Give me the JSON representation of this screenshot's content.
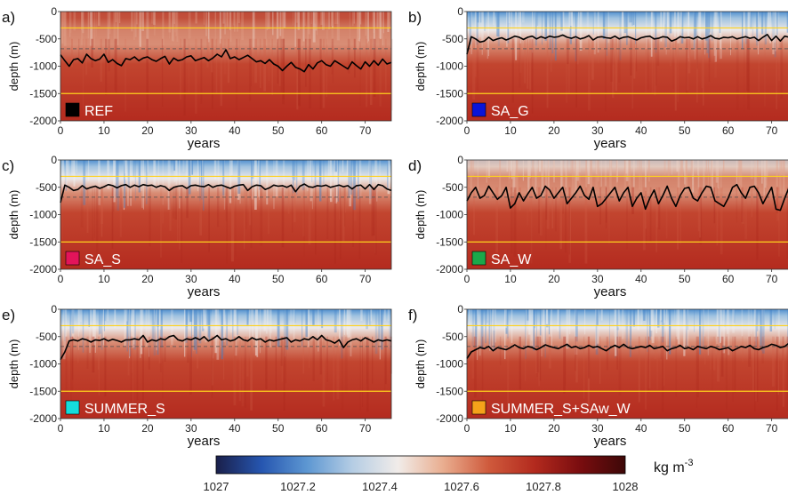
{
  "chart_data": {
    "type": "heatmap",
    "panels": [
      {
        "letter": "a)",
        "name": "REF",
        "legend_color": "#000000",
        "surface_fresh": 0.0,
        "thermocline_depth": [
          -1000,
          -800
        ],
        "mixed_layer_depth": [
          -790,
          -900,
          -1000,
          -880,
          -860,
          -940,
          -780,
          -860,
          -900,
          -870,
          -780,
          -930,
          -880,
          -950,
          -990,
          -860,
          -880,
          -830,
          -900,
          -850,
          -830,
          -880,
          -910,
          -860,
          -820,
          -960,
          -850,
          -900,
          -880,
          -830,
          -810,
          -900,
          -870,
          -840,
          -900,
          -850,
          -780,
          -830,
          -700,
          -860,
          -830,
          -880,
          -840,
          -800,
          -860,
          -920,
          -900,
          -950,
          -880,
          -960,
          -1000,
          -1080,
          -1000,
          -930,
          -1020,
          -1050,
          -1100,
          -970,
          -1050,
          -940,
          -900,
          -970,
          -1000,
          -900,
          -950,
          -1000,
          -1050,
          -920,
          -990,
          -1050,
          -920,
          -1000,
          -900,
          -980,
          -870,
          -960,
          -930
        ]
      },
      {
        "letter": "b)",
        "name": "SA_G",
        "legend_color": "#0a14d8",
        "surface_fresh": 1.0,
        "thermocline_depth": [
          -560,
          -420
        ],
        "mixed_layer_depth": [
          -780,
          -460,
          -500,
          -560,
          -540,
          -470,
          -530,
          -500,
          -480,
          -520,
          -490,
          -450,
          -470,
          -510,
          -470,
          -450,
          -500,
          -460,
          -490,
          -450,
          -470,
          -460,
          -430,
          -470,
          -490,
          -460,
          -500,
          -480,
          -440,
          -520,
          -470,
          -460,
          -480,
          -490,
          -450,
          -500,
          -470,
          -460,
          -490,
          -520,
          -480,
          -460,
          -450,
          -500,
          -490,
          -460,
          -470,
          -540,
          -510,
          -460,
          -480,
          -470,
          -500,
          -460,
          -500,
          -480,
          -440,
          -490,
          -500,
          -470,
          -480,
          -460,
          -500,
          -480,
          -460,
          -490,
          -470,
          -530,
          -470,
          -420,
          -530,
          -450,
          -540,
          -450,
          -470,
          -430,
          -450
        ]
      },
      {
        "letter": "c)",
        "name": "SA_S",
        "legend_color": "#e3145a",
        "surface_fresh": 0.85,
        "thermocline_depth": [
          -600,
          -420
        ],
        "mixed_layer_depth": [
          -780,
          -460,
          -500,
          -560,
          -540,
          -470,
          -530,
          -500,
          -480,
          -520,
          -490,
          -450,
          -470,
          -510,
          -470,
          -450,
          -500,
          -460,
          -490,
          -450,
          -470,
          -460,
          -500,
          -470,
          -490,
          -560,
          -500,
          -480,
          -470,
          -520,
          -470,
          -460,
          -480,
          -490,
          -450,
          -500,
          -470,
          -460,
          -490,
          -520,
          -480,
          -460,
          -450,
          -560,
          -490,
          -460,
          -470,
          -540,
          -510,
          -460,
          -480,
          -470,
          -500,
          -460,
          -580,
          -480,
          -440,
          -490,
          -500,
          -470,
          -480,
          -460,
          -500,
          -480,
          -460,
          -490,
          -470,
          -530,
          -470,
          -460,
          -530,
          -450,
          -540,
          -450,
          -470,
          -530,
          -560
        ]
      },
      {
        "letter": "d)",
        "name": "SA_W",
        "legend_color": "#1aa84a",
        "surface_fresh": 0.45,
        "thermocline_depth": [
          -950,
          -450
        ],
        "mixed_layer_depth": [
          -750,
          -600,
          -500,
          -700,
          -650,
          -480,
          -600,
          -720,
          -650,
          -500,
          -880,
          -800,
          -600,
          -750,
          -620,
          -500,
          -700,
          -650,
          -480,
          -550,
          -700,
          -600,
          -500,
          -800,
          -700,
          -600,
          -480,
          -650,
          -720,
          -500,
          -850,
          -800,
          -700,
          -600,
          -500,
          -750,
          -600,
          -500,
          -850,
          -700,
          -600,
          -900,
          -700,
          -550,
          -800,
          -650,
          -480,
          -700,
          -850,
          -650,
          -520,
          -500,
          -700,
          -750,
          -600,
          -480,
          -500,
          -750,
          -800,
          -850,
          -700,
          -500,
          -450,
          -600,
          -700,
          -500,
          -480,
          -600,
          -800,
          -650,
          -500,
          -900,
          -920,
          -700,
          -500,
          -480,
          -500
        ]
      },
      {
        "letter": "e)",
        "name": "SUMMER_S",
        "legend_color": "#15dcdc",
        "surface_fresh": 1.0,
        "thermocline_depth": [
          -680,
          -480
        ],
        "mixed_layer_depth": [
          -920,
          -780,
          -580,
          -560,
          -580,
          -540,
          -560,
          -600,
          -560,
          -570,
          -540,
          -580,
          -550,
          -570,
          -600,
          -560,
          -560,
          -540,
          -560,
          -480,
          -600,
          -560,
          -580,
          -540,
          -560,
          -500,
          -480,
          -560,
          -580,
          -540,
          -560,
          -520,
          -560,
          -500,
          -580,
          -540,
          -480,
          -560,
          -540,
          -580,
          -560,
          -500,
          -560,
          -580,
          -520,
          -560,
          -540,
          -600,
          -560,
          -580,
          -560,
          -540,
          -520,
          -600,
          -560,
          -580,
          -540,
          -560,
          -500,
          -560,
          -480,
          -560,
          -580,
          -620,
          -560,
          -700,
          -600,
          -560,
          -540,
          -580,
          -520,
          -560,
          -600,
          -560,
          -580,
          -560,
          -580
        ]
      },
      {
        "letter": "f)",
        "name": "SUMMER_S+SAw_W",
        "legend_color": "#f5a21a",
        "surface_fresh": 0.9,
        "thermocline_depth": [
          -800,
          -580
        ],
        "mixed_layer_depth": [
          -900,
          -780,
          -740,
          -700,
          -720,
          -680,
          -760,
          -700,
          -720,
          -740,
          -700,
          -650,
          -700,
          -720,
          -680,
          -700,
          -740,
          -700,
          -650,
          -680,
          -700,
          -720,
          -680,
          -640,
          -700,
          -680,
          -720,
          -700,
          -660,
          -700,
          -680,
          -720,
          -760,
          -700,
          -660,
          -700,
          -640,
          -700,
          -720,
          -700,
          -680,
          -700,
          -660,
          -720,
          -700,
          -680,
          -760,
          -720,
          -700,
          -660,
          -720,
          -700,
          -740,
          -680,
          -700,
          -720,
          -680,
          -700,
          -740,
          -720,
          -700,
          -760,
          -720,
          -680,
          -700,
          -660,
          -720,
          -740,
          -700,
          -680,
          -640,
          -660,
          -700,
          -680,
          -620,
          -660,
          -680
        ]
      }
    ],
    "x_range": [
      0,
      76
    ],
    "x_ticks": [
      "0",
      "10",
      "20",
      "30",
      "40",
      "50",
      "60",
      "70"
    ],
    "y_range": [
      -2000,
      0
    ],
    "y_ticks": [
      "0",
      "-500",
      "-1000",
      "-1500",
      "-2000"
    ],
    "xlabel": "years",
    "ylabel": "depth (m)",
    "reference_lines": {
      "yellow_solid": [
        -300,
        -1500
      ],
      "dashed_gray": [
        -680
      ],
      "yellow_color": "#ffd21e",
      "dashed_color": "#6b5a55"
    },
    "colorbar": {
      "range": [
        1027,
        1028
      ],
      "tick_labels": [
        "1027",
        "1027.2",
        "1027.4",
        "1027.6",
        "1027.8",
        "1028"
      ],
      "unit_main": "kg m",
      "unit_exp": "-3",
      "colors": [
        "#1a1f4a",
        "#2656b0",
        "#5d97d2",
        "#b5cde4",
        "#f1ece9",
        "#e9ad8f",
        "#cf5a3c",
        "#b32a1e",
        "#7a0d0f",
        "#3d0808"
      ]
    }
  }
}
